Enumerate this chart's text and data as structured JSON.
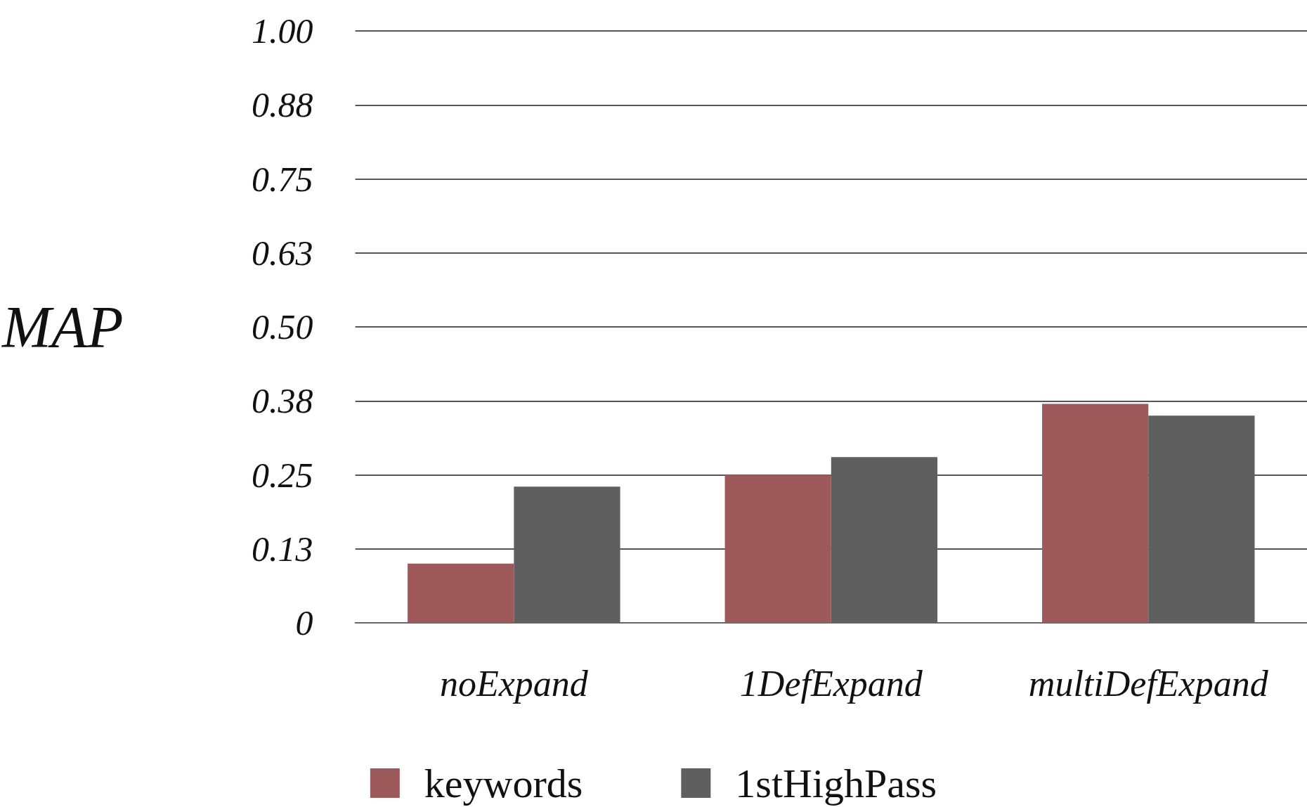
{
  "chart_data": {
    "type": "bar",
    "ylabel": "MAP",
    "categories": [
      "noExpand",
      "1DefExpand",
      "multiDefExpand"
    ],
    "series": [
      {
        "name": "keywords",
        "color": "#9e5a5a",
        "values": [
          0.1,
          0.25,
          0.37
        ]
      },
      {
        "name": "1stHighPass",
        "color": "#5f5f5f",
        "values": [
          0.23,
          0.28,
          0.35
        ]
      }
    ],
    "ylim": [
      0,
      1
    ],
    "yticks": [
      0,
      {
        "value": 0.125,
        "label": "0.13"
      },
      {
        "value": 0.25,
        "label": "0.25"
      },
      {
        "value": 0.375,
        "label": "0.38"
      },
      {
        "value": 0.5,
        "label": "0.50"
      },
      {
        "value": 0.625,
        "label": "0.63"
      },
      {
        "value": 0.75,
        "label": "0.75"
      },
      {
        "value": 0.875,
        "label": "0.88"
      },
      {
        "value": 1,
        "label": "1.00"
      }
    ],
    "grid": "y",
    "legend": "bottom"
  }
}
